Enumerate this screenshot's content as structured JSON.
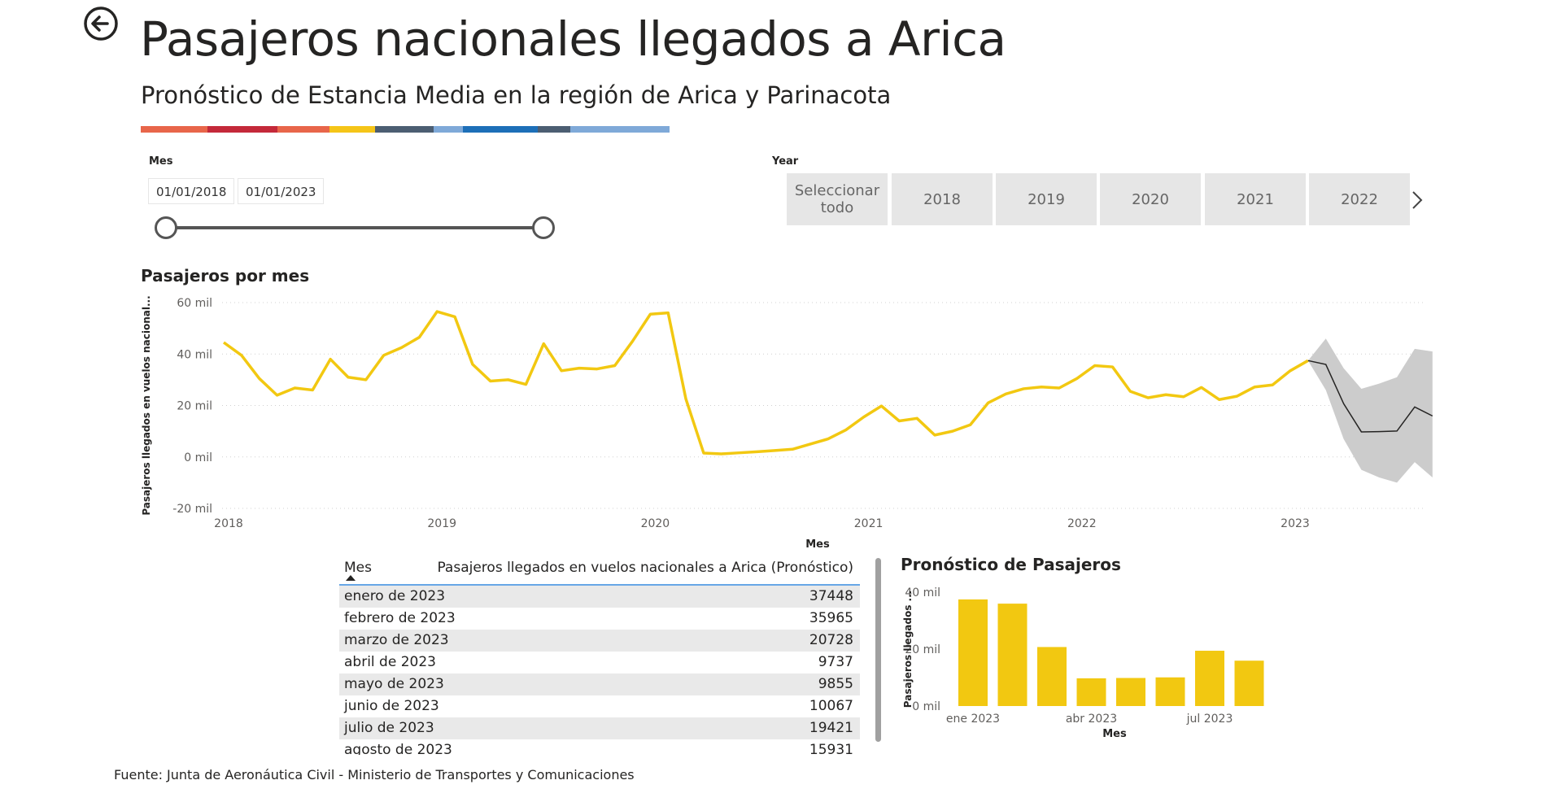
{
  "page": {
    "title": "Pasajeros nacionales llegados a Arica",
    "subtitle": "Pronóstico de Estancia Media en la región de Arica y Parinacota",
    "stripe_colors": [
      "#e8664a",
      "#c4293a",
      "#e8664a",
      "#f5c518",
      "#4c5e72",
      "#7fa9d8",
      "#1d6fb8",
      "#4c5e72",
      "#7fa9d8"
    ],
    "footer": "Fuente: Junta de Aeronáutica Civil - Ministerio de Transportes y Comunicaciones"
  },
  "icons": {
    "back": "back-arrow-circle-icon",
    "next": "chevron-right-icon"
  },
  "slicer_mes": {
    "label": "Mes",
    "start_date": "01/01/2018",
    "end_date": "01/01/2023",
    "slider_value": [
      0,
      1
    ]
  },
  "slicer_year": {
    "label": "Year",
    "tiles": [
      "Seleccionar todo",
      "2018",
      "2019",
      "2020",
      "2021",
      "2022"
    ]
  },
  "colors": {
    "actual": "#f2c811",
    "forecast": "#252423",
    "band": "#cccccc",
    "bar": "#f2c811"
  },
  "chart_data": [
    {
      "type": "line",
      "title": "Pasajeros por mes",
      "xlabel": "Mes",
      "ylabel": "Pasajeros llegados en vuelos nacional...",
      "ylim": [
        -20000,
        60000
      ],
      "y_ticks": [
        60000,
        40000,
        20000,
        0,
        -20000
      ],
      "y_tick_labels": [
        "60 mil",
        "40 mil",
        "20 mil",
        "0 mil",
        "-20 mil"
      ],
      "x_tick_labels": [
        "2018",
        "2019",
        "2020",
        "2021",
        "2022",
        "2023"
      ],
      "grid": true,
      "series": [
        {
          "role": "actual",
          "x_start": "2018-01",
          "values": [
            44500,
            39500,
            30500,
            24000,
            26800,
            26000,
            38000,
            31000,
            30000,
            39500,
            42500,
            46500,
            56500,
            54500,
            36000,
            29500,
            30000,
            28200,
            44000,
            33500,
            34500,
            34200,
            35500,
            45000,
            55500,
            56000,
            22500,
            1500,
            1200,
            1600,
            2000,
            2500,
            3000,
            5000,
            7000,
            10500,
            15500,
            19800,
            14000,
            15000,
            8500,
            10000,
            12500,
            21000,
            24500,
            26500,
            27200,
            26800,
            30500,
            35500,
            35000,
            25500,
            23000,
            24200,
            23400,
            27000,
            22300,
            23600,
            27200,
            28000,
            33500,
            37448
          ]
        },
        {
          "role": "forecast",
          "x_start": "2023-01",
          "values": [
            37448,
            35965,
            20728,
            9737,
            9855,
            10067,
            19421,
            15931
          ],
          "lower": [
            37448,
            26000,
            7000,
            -5000,
            -8000,
            -10000,
            -2000,
            -8000
          ],
          "upper": [
            37448,
            46000,
            34500,
            26500,
            28500,
            31000,
            42000,
            41000
          ]
        }
      ]
    },
    {
      "type": "bar",
      "title": "Pronóstico de Pasajeros",
      "xlabel": "Mes",
      "ylabel": "Pasajeros llegados ...",
      "ylim": [
        0,
        40000
      ],
      "y_ticks": [
        0,
        20000,
        40000
      ],
      "y_tick_labels": [
        "0 mil",
        "20 mil",
        "40 mil"
      ],
      "categories": [
        "2023-01",
        "2023-02",
        "2023-03",
        "2023-04",
        "2023-05",
        "2023-06",
        "2023-07",
        "2023-08"
      ],
      "x_tick_labels": [
        {
          "index": 0,
          "label": "ene 2023"
        },
        {
          "index": 3,
          "label": "abr 2023"
        },
        {
          "index": 6,
          "label": "jul 2023"
        }
      ],
      "values": [
        37448,
        35965,
        20728,
        9737,
        9855,
        10067,
        19421,
        15931
      ]
    }
  ],
  "table": {
    "col_mes": "Mes",
    "col_value": "Pasajeros llegados en vuelos nacionales a Arica (Pronóstico)",
    "rows": [
      {
        "mes": "enero de 2023",
        "value": "37448"
      },
      {
        "mes": "febrero de 2023",
        "value": "35965"
      },
      {
        "mes": "marzo de 2023",
        "value": "20728"
      },
      {
        "mes": "abril de 2023",
        "value": "9737"
      },
      {
        "mes": "mayo de 2023",
        "value": "9855"
      },
      {
        "mes": "junio de 2023",
        "value": "10067"
      },
      {
        "mes": "julio de 2023",
        "value": "19421"
      },
      {
        "mes": "agosto de 2023",
        "value": "15931"
      }
    ]
  }
}
